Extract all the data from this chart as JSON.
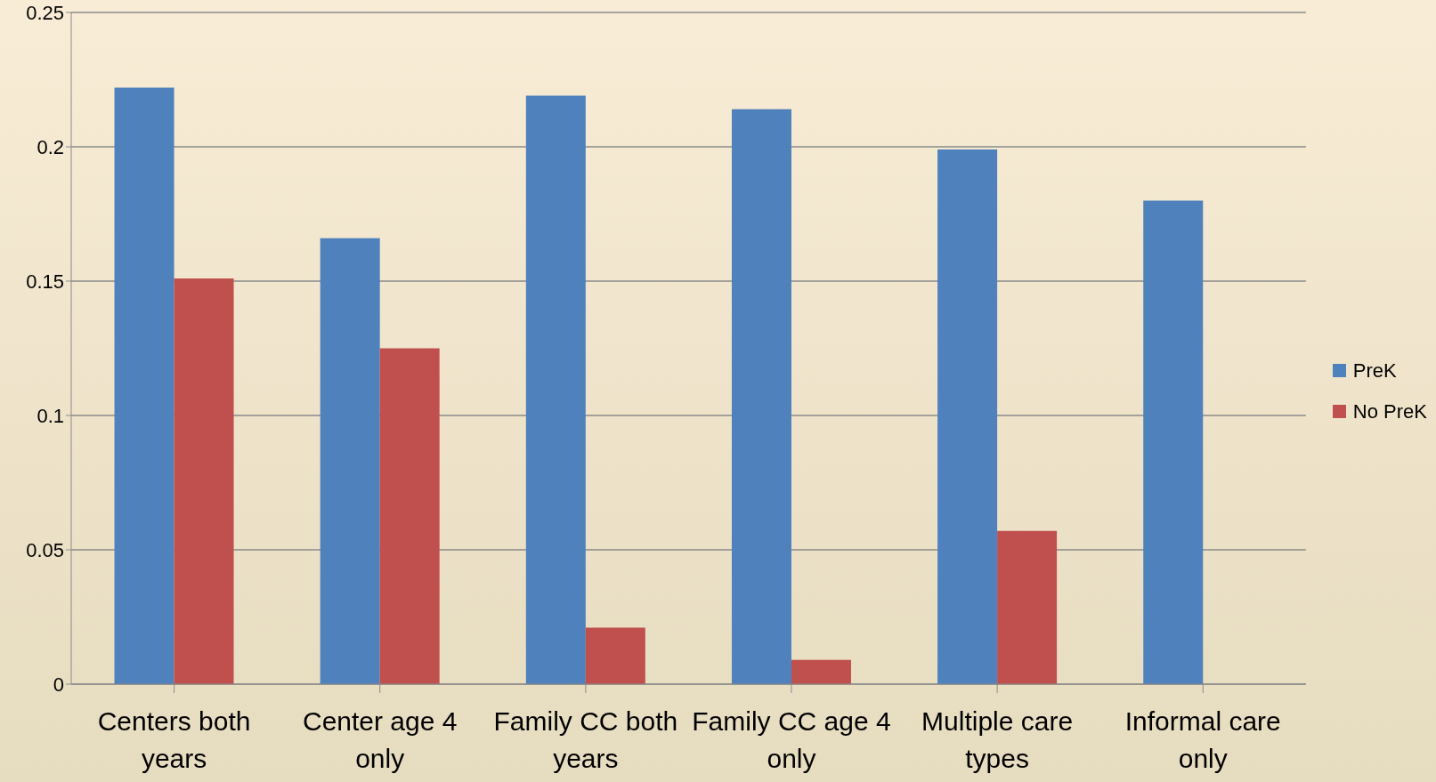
{
  "chart_data": {
    "type": "bar",
    "categories": [
      "Centers both years",
      "Center age 4 only",
      "Family CC both years",
      "Family CC age 4 only",
      "Multiple care types",
      "Informal care only"
    ],
    "series": [
      {
        "name": "PreK",
        "color": "#4f81bd",
        "values": [
          0.222,
          0.166,
          0.219,
          0.214,
          0.199,
          0.18
        ]
      },
      {
        "name": "No PreK",
        "color": "#c0504d",
        "values": [
          0.151,
          0.125,
          0.021,
          0.009,
          0.057,
          null
        ]
      }
    ],
    "ylim": [
      0,
      0.25
    ],
    "yticks": [
      0,
      0.05,
      0.1,
      0.15,
      0.2,
      0.25
    ],
    "grid": "y",
    "legend": "right"
  }
}
